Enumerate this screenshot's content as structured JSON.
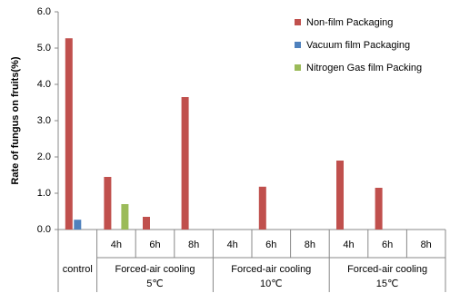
{
  "chart_data": {
    "type": "bar",
    "y_label": "Rate of fungus on fruits(%)",
    "categories": [
      null,
      "4h",
      "6h",
      "8h",
      "4h",
      "6h",
      "8h",
      "4h",
      "6h",
      "8h"
    ],
    "groups": [
      {
        "lines": [
          "control"
        ],
        "count": 1
      },
      {
        "lines": [
          "Forced-air cooling",
          "5℃"
        ],
        "count": 3
      },
      {
        "lines": [
          "Forced-air cooling",
          "10℃"
        ],
        "count": 3
      },
      {
        "lines": [
          "Forced-air cooling",
          "15℃"
        ],
        "count": 3
      }
    ],
    "series": [
      {
        "name": "Non-film Packaging",
        "color": "#c0504d",
        "values": [
          5.27,
          1.45,
          0.35,
          3.65,
          null,
          1.18,
          null,
          1.9,
          1.15,
          null
        ]
      },
      {
        "name": "Vacuum film Packaging",
        "color": "#4f81bd",
        "values": [
          0.27,
          null,
          null,
          null,
          null,
          null,
          null,
          null,
          null,
          null
        ]
      },
      {
        "name": "Nitrogen Gas film Packing",
        "color": "#9bbb59",
        "values": [
          null,
          0.7,
          null,
          null,
          null,
          null,
          null,
          null,
          null,
          null
        ]
      }
    ],
    "ylim": [
      0,
      6
    ],
    "yticks": [
      {
        "value": 0,
        "label": "0.0"
      },
      {
        "value": 1,
        "label": "1.0"
      },
      {
        "value": 2,
        "label": "2.0"
      },
      {
        "value": 3,
        "label": "3.0"
      },
      {
        "value": 4,
        "label": "4.0"
      },
      {
        "value": 5,
        "label": "5.0"
      },
      {
        "value": 6,
        "label": "6.0"
      }
    ],
    "legend": "top-right",
    "grid": false
  }
}
